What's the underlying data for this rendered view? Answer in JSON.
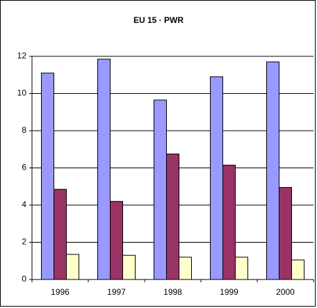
{
  "chart_data": {
    "type": "bar",
    "title": "EU 15 · PWR",
    "categories": [
      "1996",
      "1997",
      "1998",
      "1999",
      "2000"
    ],
    "series": [
      {
        "color": "#9999ff",
        "values": [
          11.1,
          11.85,
          9.65,
          10.9,
          11.7
        ]
      },
      {
        "color": "#993366",
        "values": [
          4.85,
          4.2,
          6.75,
          6.15,
          4.95
        ]
      },
      {
        "color": "#ffffcc",
        "values": [
          1.35,
          1.3,
          1.2,
          1.2,
          1.05
        ]
      }
    ],
    "ylim": [
      0,
      12
    ],
    "yticks": [
      0,
      2,
      4,
      6,
      8,
      10,
      12
    ],
    "grid": true
  }
}
